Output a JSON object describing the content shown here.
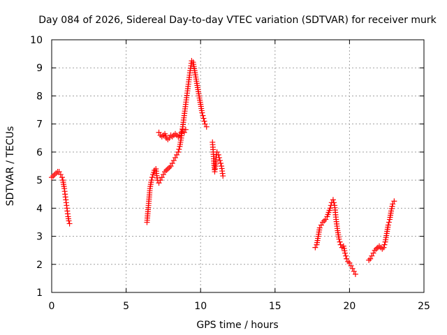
{
  "chart_data": {
    "type": "scatter",
    "title": "Day 084 of 2026, Sidereal Day-to-day VTEC variation (SDTVAR) for receiver murk",
    "xlabel": "GPS time / hours",
    "ylabel": "SDTVAR / TECUs",
    "xlim": [
      0,
      25
    ],
    "ylim": [
      1,
      10
    ],
    "xticks": [
      "0",
      "5",
      "10",
      "15",
      "20",
      "25"
    ],
    "yticks": [
      "1",
      "2",
      "3",
      "4",
      "5",
      "6",
      "7",
      "8",
      "9",
      "10"
    ],
    "grid": true,
    "marker": "+",
    "color": "#ff0000",
    "segments": [
      {
        "x": [
          0,
          0.1,
          0.2,
          0.3,
          0.4,
          0.5,
          0.6,
          0.7,
          0.75,
          0.8,
          0.85,
          0.9,
          0.95,
          1.0,
          1.05,
          1.1,
          1.15,
          1.2
        ],
        "y": [
          5.1,
          5.15,
          5.2,
          5.25,
          5.3,
          5.3,
          5.2,
          5.1,
          5.0,
          4.85,
          4.7,
          4.5,
          4.3,
          4.1,
          3.9,
          3.7,
          3.55,
          3.45
        ]
      },
      {
        "x": [
          6.4,
          6.45,
          6.5,
          6.55,
          6.6,
          6.7,
          6.8,
          6.9,
          7.0,
          7.1,
          7.2,
          7.3,
          7.4,
          7.5,
          7.6,
          7.7,
          7.8,
          7.9,
          8.0,
          8.1,
          8.2,
          8.3,
          8.4,
          8.5,
          8.6,
          8.7,
          8.8,
          8.9,
          9.0,
          9.1,
          9.2,
          9.3,
          9.4,
          9.5,
          9.6,
          9.7,
          9.8,
          9.9,
          10.0,
          10.1,
          10.2,
          10.3,
          10.4
        ],
        "y": [
          3.5,
          3.8,
          4.1,
          4.4,
          4.7,
          5.0,
          5.2,
          5.35,
          5.4,
          5.0,
          4.9,
          5.0,
          5.1,
          5.2,
          5.3,
          5.35,
          5.4,
          5.45,
          5.5,
          5.6,
          5.7,
          5.8,
          5.9,
          6.0,
          6.2,
          6.5,
          6.9,
          7.3,
          7.7,
          8.1,
          8.5,
          8.9,
          9.25,
          9.2,
          8.9,
          8.6,
          8.3,
          8.0,
          7.7,
          7.4,
          7.2,
          7.0,
          6.9
        ]
      },
      {
        "x": [
          7.2,
          7.3,
          7.4,
          7.5,
          7.6,
          7.7,
          7.8,
          7.9,
          8.0,
          8.1,
          8.2,
          8.3,
          8.4,
          8.5,
          8.6,
          8.7,
          8.8,
          8.9,
          9.0
        ],
        "y": [
          6.7,
          6.6,
          6.55,
          6.6,
          6.65,
          6.5,
          6.45,
          6.5,
          6.6,
          6.55,
          6.6,
          6.65,
          6.6,
          6.55,
          6.6,
          6.7,
          6.8,
          6.7,
          6.8
        ]
      },
      {
        "x": [
          10.8,
          10.85,
          10.9,
          10.95,
          11.0,
          11.05,
          11.1,
          11.2,
          11.3,
          11.4,
          11.5
        ],
        "y": [
          6.35,
          6.0,
          5.6,
          5.3,
          5.5,
          5.8,
          6.0,
          5.9,
          5.7,
          5.5,
          5.15
        ]
      },
      {
        "x": [
          17.7,
          17.8,
          17.9,
          18.0,
          18.1,
          18.2,
          18.3,
          18.4,
          18.5,
          18.6,
          18.7,
          18.8,
          18.9,
          19.0,
          19.1,
          19.2,
          19.3,
          19.4,
          19.5,
          19.6,
          19.7,
          19.8,
          19.9,
          20.0,
          20.1,
          20.2,
          20.3,
          20.4
        ],
        "y": [
          2.6,
          2.7,
          3.0,
          3.3,
          3.4,
          3.5,
          3.55,
          3.6,
          3.7,
          3.85,
          4.0,
          4.2,
          4.3,
          4.1,
          3.6,
          3.2,
          2.9,
          2.7,
          2.6,
          2.65,
          2.4,
          2.2,
          2.1,
          2.05,
          1.95,
          1.85,
          1.75,
          1.65
        ]
      },
      {
        "x": [
          21.3,
          21.4,
          21.5,
          21.6,
          21.7,
          21.8,
          21.9,
          22.0,
          22.1,
          22.2,
          22.3,
          22.4,
          22.5,
          22.6,
          22.7,
          22.8,
          22.9,
          23.0
        ],
        "y": [
          2.15,
          2.2,
          2.3,
          2.4,
          2.5,
          2.55,
          2.6,
          2.65,
          2.6,
          2.55,
          2.6,
          2.8,
          3.1,
          3.4,
          3.6,
          3.9,
          4.15,
          4.25
        ]
      }
    ]
  }
}
